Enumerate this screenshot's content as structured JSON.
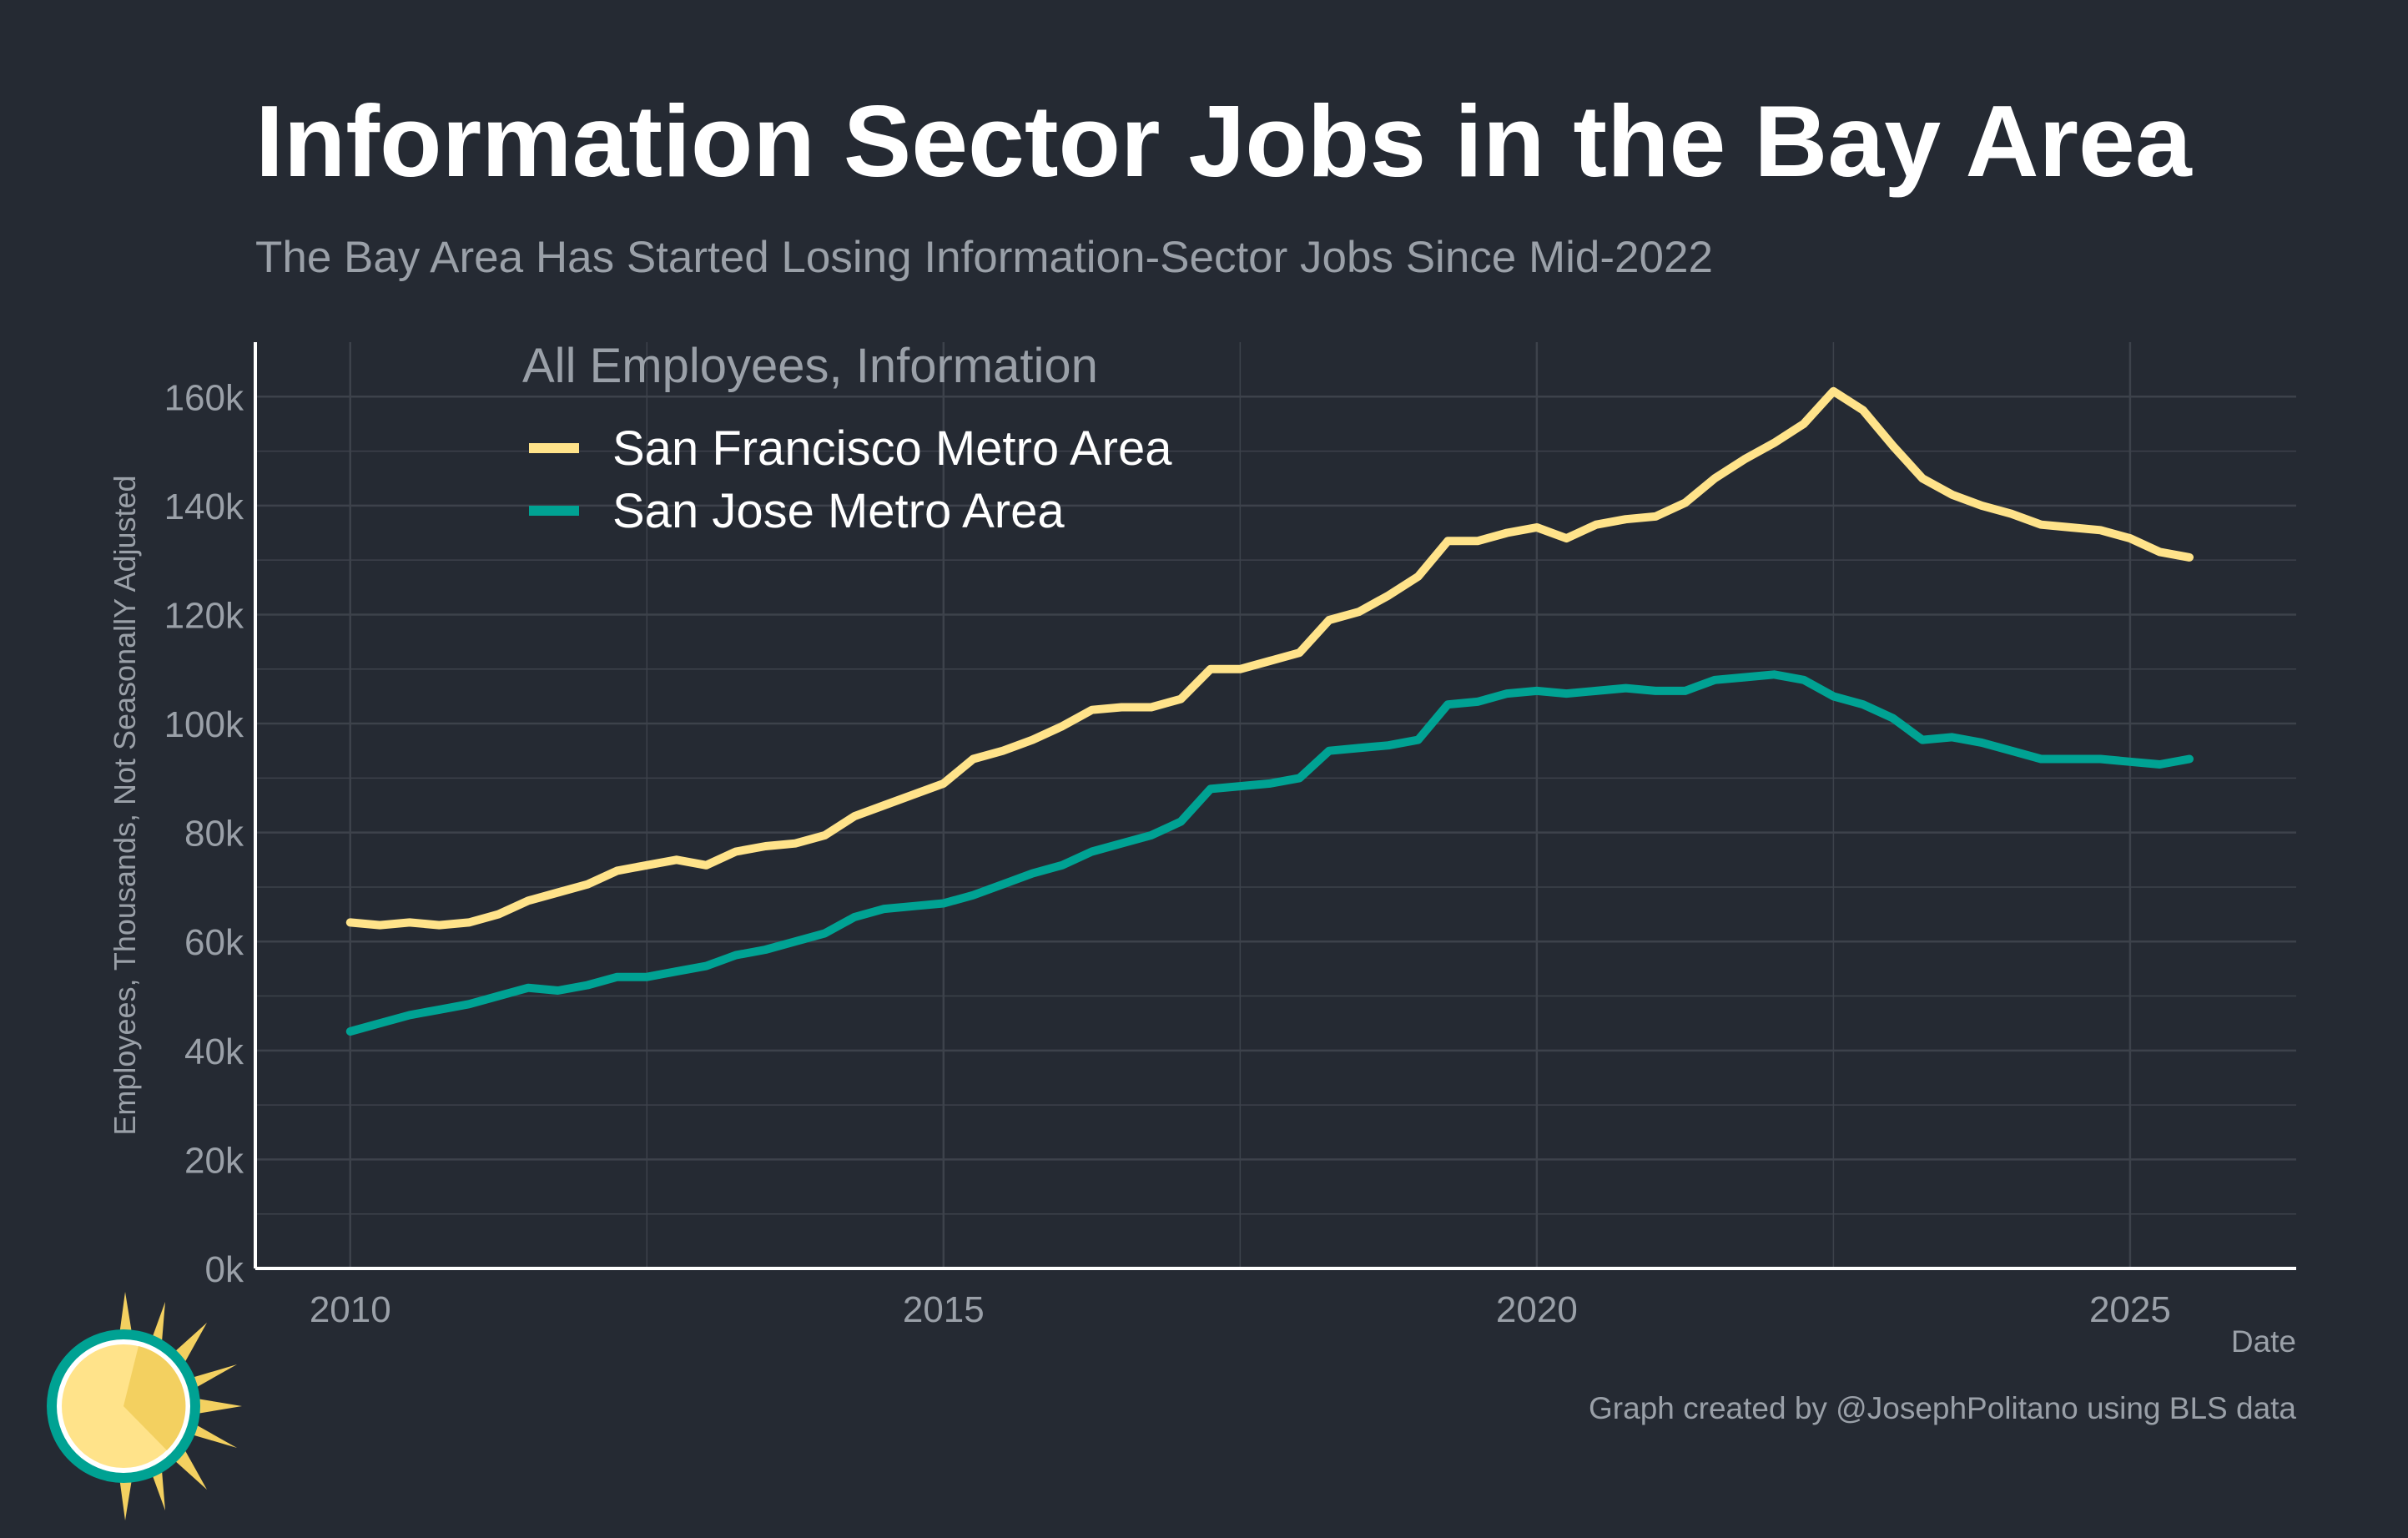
{
  "title": "Information Sector Jobs in the Bay Area",
  "subtitle": "The Bay Area Has Started Losing Information-Sector Jobs Since Mid-2022",
  "footer": {
    "credit": "Graph created by @JosephPolitano using BLS data"
  },
  "colors": {
    "background": "#252a33",
    "san_francisco": "#ffe38a",
    "san_jose": "#00a293",
    "grid": "#3d424b",
    "text_muted": "#9aa0a8"
  },
  "chart_data": {
    "type": "line",
    "xlabel": "Date",
    "ylabel": "Employees, Thousands, Not SeasonallY Adjusted",
    "xlim": [
      2009.2,
      2026.4
    ],
    "ylim": [
      0,
      170000
    ],
    "x_ticks": [
      2010,
      2015,
      2020,
      2025
    ],
    "x_tick_labels": [
      "2010",
      "2015",
      "2020",
      "2025"
    ],
    "y_ticks": [
      0,
      20000,
      40000,
      60000,
      80000,
      100000,
      120000,
      140000,
      160000
    ],
    "y_tick_labels": [
      "0k",
      "20k",
      "40k",
      "60k",
      "80k",
      "100k",
      "120k",
      "140k",
      "160k"
    ],
    "grid": true,
    "legend": {
      "title": "All Employees, Information",
      "placement": "top-left"
    },
    "series": [
      {
        "name": "San Francisco Metro Area",
        "color": "#ffe38a",
        "x": [
          2010.0,
          2010.25,
          2010.5,
          2010.75,
          2011.0,
          2011.25,
          2011.5,
          2011.75,
          2012.0,
          2012.25,
          2012.5,
          2012.75,
          2013.0,
          2013.25,
          2013.5,
          2013.75,
          2014.0,
          2014.25,
          2014.5,
          2014.75,
          2015.0,
          2015.25,
          2015.5,
          2015.75,
          2016.0,
          2016.25,
          2016.5,
          2016.75,
          2017.0,
          2017.25,
          2017.5,
          2017.75,
          2018.0,
          2018.25,
          2018.5,
          2018.75,
          2019.0,
          2019.25,
          2019.5,
          2019.75,
          2020.0,
          2020.25,
          2020.5,
          2020.75,
          2021.0,
          2021.25,
          2021.5,
          2021.75,
          2022.0,
          2022.25,
          2022.5,
          2022.75,
          2023.0,
          2023.25,
          2023.5,
          2023.75,
          2024.0,
          2024.25,
          2024.5,
          2024.75,
          2025.0,
          2025.25,
          2025.5
        ],
        "values": [
          63500,
          63000,
          63500,
          63000,
          63500,
          65000,
          67500,
          69000,
          70500,
          73000,
          74000,
          75000,
          74000,
          76500,
          77500,
          78000,
          79500,
          83000,
          85000,
          87000,
          89000,
          93500,
          95000,
          97000,
          99500,
          102500,
          103000,
          103000,
          104500,
          110000,
          110000,
          111500,
          113000,
          119000,
          120500,
          123500,
          127000,
          133500,
          133500,
          135000,
          136000,
          134000,
          136500,
          137500,
          138000,
          140500,
          145000,
          148500,
          151500,
          155000,
          161000,
          157500,
          151000,
          145000,
          142000,
          140000,
          138500,
          136500,
          136000,
          135500,
          134000,
          131500,
          130500
        ]
      },
      {
        "name": "San Jose Metro Area",
        "color": "#00a293",
        "x": [
          2010.0,
          2010.25,
          2010.5,
          2010.75,
          2011.0,
          2011.25,
          2011.5,
          2011.75,
          2012.0,
          2012.25,
          2012.5,
          2012.75,
          2013.0,
          2013.25,
          2013.5,
          2013.75,
          2014.0,
          2014.25,
          2014.5,
          2014.75,
          2015.0,
          2015.25,
          2015.5,
          2015.75,
          2016.0,
          2016.25,
          2016.5,
          2016.75,
          2017.0,
          2017.25,
          2017.5,
          2017.75,
          2018.0,
          2018.25,
          2018.5,
          2018.75,
          2019.0,
          2019.25,
          2019.5,
          2019.75,
          2020.0,
          2020.25,
          2020.5,
          2020.75,
          2021.0,
          2021.25,
          2021.5,
          2021.75,
          2022.0,
          2022.25,
          2022.5,
          2022.75,
          2023.0,
          2023.25,
          2023.5,
          2023.75,
          2024.0,
          2024.25,
          2024.5,
          2024.75,
          2025.0,
          2025.25,
          2025.5
        ],
        "values": [
          43500,
          45000,
          46500,
          47500,
          48500,
          50000,
          51500,
          51000,
          52000,
          53500,
          53500,
          54500,
          55500,
          57500,
          58500,
          60000,
          61500,
          64500,
          66000,
          66500,
          67000,
          68500,
          70500,
          72500,
          74000,
          76500,
          78000,
          79500,
          82000,
          88000,
          88500,
          89000,
          90000,
          95000,
          95500,
          96000,
          97000,
          103500,
          104000,
          105500,
          106000,
          105500,
          106000,
          106500,
          106000,
          106000,
          108000,
          108500,
          109000,
          108000,
          105000,
          103500,
          101000,
          97000,
          97500,
          96500,
          95000,
          93500,
          93500,
          93500,
          93000,
          92500,
          93500
        ]
      }
    ]
  }
}
